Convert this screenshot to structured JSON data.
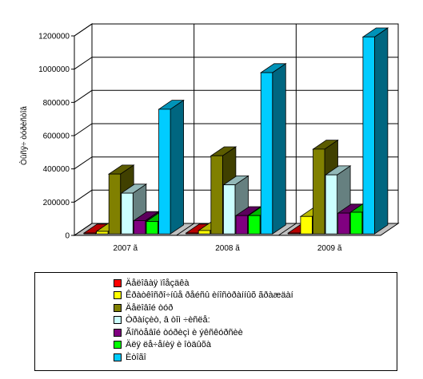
{
  "chart_data": {
    "type": "bar",
    "title": "",
    "xlabel": "",
    "ylabel": "Òûñÿ÷ òóðèñòîâ",
    "ylim": [
      0,
      1200000
    ],
    "yticks": [
      0,
      200000,
      400000,
      600000,
      800000,
      1000000,
      1200000
    ],
    "ytick_labels": [
      "0",
      "200000",
      "400000",
      "600000",
      "800000",
      "1000000",
      "1200000"
    ],
    "categories": [
      "2007 ã",
      "2008 ã",
      "2009 ã"
    ],
    "grid": true,
    "legend_position": "bottom",
    "series": [
      {
        "name": "Äåëîâàÿ ïîåçäêà",
        "color": "#ff0000",
        "values": [
          5000,
          5000,
          5000
        ]
      },
      {
        "name": "Êðàòêîñðî÷íûå ðåéñû èíîñòðàííûõ ãðàæäàí",
        "color": "#ffff00",
        "values": [
          15000,
          20000,
          105000
        ]
      },
      {
        "name": "Äåëîâîé òóð",
        "color": "#808000",
        "values": [
          360000,
          470000,
          510000
        ]
      },
      {
        "name": "Òðàíçèò, â òîì ÷èñëå:",
        "color": "#ccffff",
        "values": [
          245000,
          295000,
          355000
        ]
      },
      {
        "name": "Ãîñòåâîé òóðèçì è ýêñêóðñèè",
        "color": "#800080",
        "values": [
          80000,
          110000,
          125000
        ]
      },
      {
        "name": "Äëÿ ëå÷åíèÿ è îòäûõà",
        "color": "#00ff00",
        "values": [
          75000,
          110000,
          130000
        ]
      },
      {
        "name": "Èòîãî",
        "color": "#00ccff",
        "values": [
          750000,
          970000,
          1185000
        ]
      }
    ]
  }
}
